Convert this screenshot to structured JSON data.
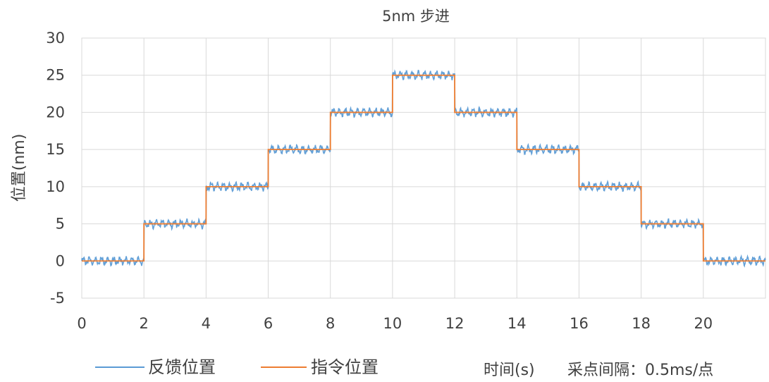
{
  "chart_data": {
    "type": "line",
    "title": "5nm 步进",
    "ylabel": "位置(nm)",
    "xlabel": "时间(s)",
    "xlim": [
      0,
      22
    ],
    "ylim": [
      -5,
      30
    ],
    "x_ticks": [
      0,
      2,
      4,
      6,
      8,
      10,
      12,
      14,
      16,
      18,
      20
    ],
    "y_ticks": [
      -5,
      0,
      5,
      10,
      15,
      20,
      25,
      30
    ],
    "grid": true,
    "legend_position": "bottom",
    "note": "采点间隔：0.5ms/点",
    "series": [
      {
        "name": "反馈位置",
        "color": "#5b9bd5",
        "style": "noisy-steps",
        "noise_amplitude_nm": 0.5,
        "x": [
          0,
          2,
          4,
          6,
          8,
          10,
          12,
          14,
          16,
          18,
          20,
          22
        ],
        "y": [
          0,
          5,
          10,
          15,
          20,
          25,
          20,
          15,
          10,
          5,
          0,
          0
        ]
      },
      {
        "name": "指令位置",
        "color": "#ed7d31",
        "style": "step",
        "x": [
          0,
          2,
          4,
          6,
          8,
          10,
          12,
          14,
          16,
          18,
          20,
          22
        ],
        "y": [
          0,
          5,
          10,
          15,
          20,
          25,
          20,
          15,
          10,
          5,
          0,
          0
        ]
      }
    ]
  }
}
